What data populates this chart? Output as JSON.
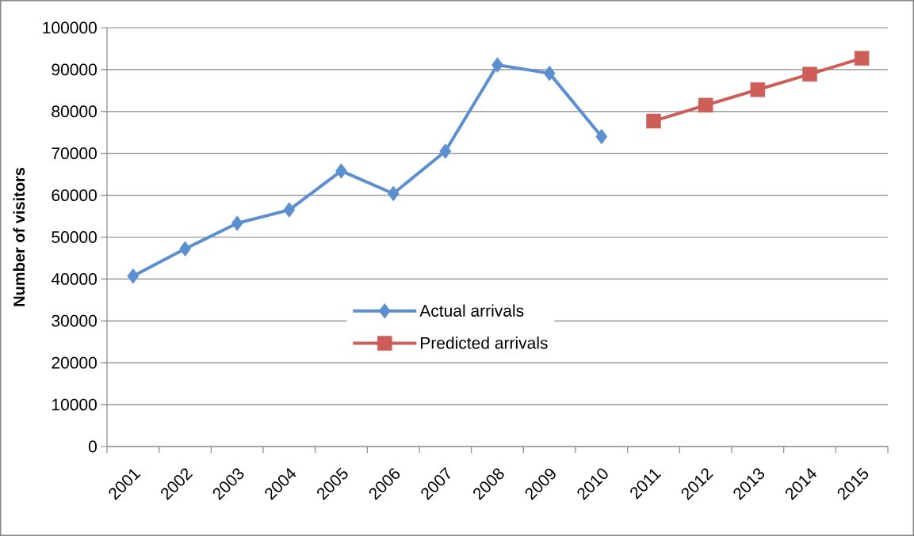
{
  "chart_data": {
    "type": "line",
    "ylabel": "Number of visitors",
    "categories": [
      "2001",
      "2002",
      "2003",
      "2004",
      "2005",
      "2006",
      "2007",
      "2008",
      "2009",
      "2010",
      "2011",
      "2012",
      "2013",
      "2014",
      "2015"
    ],
    "series": [
      {
        "name": "Actual arrivals",
        "color": "#5b8fcf",
        "marker": "diamond",
        "values": [
          40700,
          47200,
          53300,
          56500,
          65800,
          60400,
          70500,
          91100,
          89100,
          74000,
          null,
          null,
          null,
          null,
          null
        ]
      },
      {
        "name": "Predicted arrivals",
        "color": "#cc5e57",
        "marker": "square",
        "values": [
          null,
          null,
          null,
          null,
          null,
          null,
          null,
          null,
          null,
          null,
          77700,
          81500,
          85200,
          88900,
          92700
        ]
      }
    ],
    "ylim": [
      0,
      100000
    ],
    "yticks": [
      0,
      10000,
      20000,
      30000,
      40000,
      50000,
      60000,
      70000,
      80000,
      90000,
      100000
    ],
    "grid": "y",
    "legend": "bottom",
    "line_style": "solid"
  }
}
